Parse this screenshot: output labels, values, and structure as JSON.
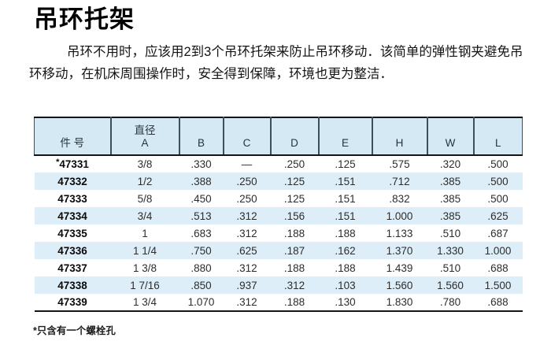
{
  "title": "吊环托架",
  "paragraph": {
    "line1": "吊环不用时，应该用2到3个吊环托架来防止吊环移动．该简单的弹性钢夹避免吊",
    "line2": "环移动，在机床周围操作时，安全得到保障，环境也更为整洁．"
  },
  "table": {
    "columns": [
      {
        "label": "件 号"
      },
      {
        "label": "直径",
        "label2": "A"
      },
      {
        "label": "B"
      },
      {
        "label": "C"
      },
      {
        "label": "D"
      },
      {
        "label": "E"
      },
      {
        "label": "H"
      },
      {
        "label": "W"
      },
      {
        "label": "L"
      }
    ],
    "rows": [
      [
        "*47331",
        "3/8",
        ".330",
        "—",
        ".250",
        ".125",
        ".575",
        ".320",
        ".500"
      ],
      [
        "47332",
        "1/2",
        ".388",
        ".250",
        ".125",
        ".151",
        ".712",
        ".385",
        ".500"
      ],
      [
        "47333",
        "5/8",
        ".450",
        ".250",
        ".125",
        ".151",
        ".832",
        ".385",
        ".500"
      ],
      [
        "47334",
        "3/4",
        ".513",
        ".312",
        ".156",
        ".151",
        "1.000",
        ".385",
        ".625"
      ],
      [
        "47335",
        "1",
        ".683",
        ".312",
        ".188",
        ".188",
        "1.133",
        ".510",
        ".687"
      ],
      [
        "47336",
        "1 1/4",
        ".750",
        ".625",
        ".187",
        ".162",
        "1.370",
        "1.330",
        "1.000"
      ],
      [
        "47337",
        "1 3/8",
        ".880",
        ".312",
        ".188",
        ".188",
        "1.439",
        ".510",
        ".688"
      ],
      [
        "47338",
        "1 7/16",
        ".850",
        ".937",
        ".312",
        ".103",
        "1.560",
        "1.560",
        "1.500"
      ],
      [
        "47339",
        "1 3/4",
        "1.070",
        ".312",
        ".188",
        ".130",
        "1.830",
        ".780",
        ".688"
      ]
    ],
    "footnote": "*只含有一个螺栓孔"
  },
  "colors": {
    "header_bg": "#d5e9f5",
    "row_alt_bg": "#ddeef8",
    "heavy_border": "#151515",
    "divider": "#3d4f59"
  }
}
